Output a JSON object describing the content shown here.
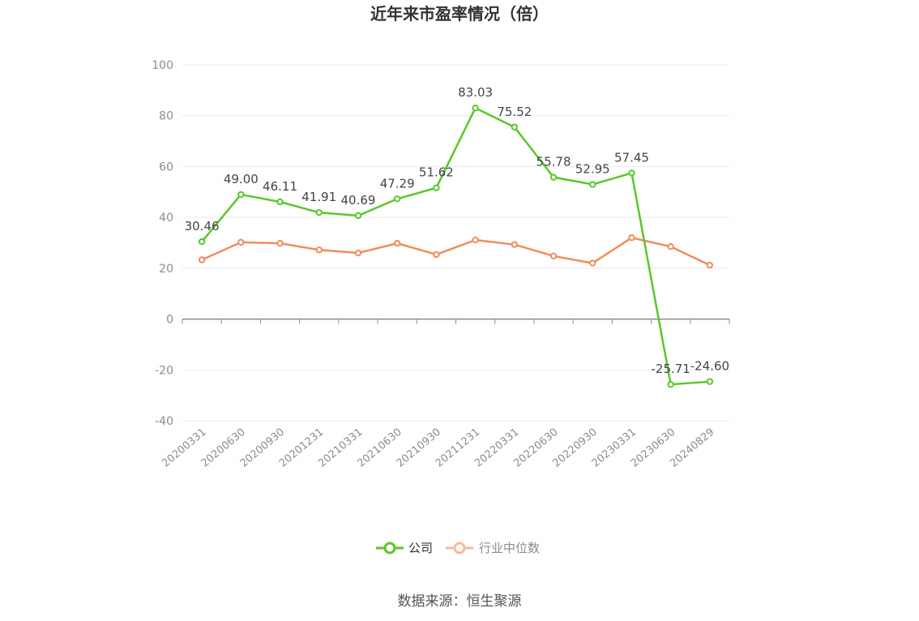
{
  "chart_data": {
    "type": "line",
    "title": "近年来市盈率情况（倍）",
    "categories": [
      "20200331",
      "20200630",
      "20200930",
      "20201231",
      "20210331",
      "20210630",
      "20210930",
      "20211231",
      "20220331",
      "20220630",
      "20220930",
      "20230331",
      "20230630",
      "20240829"
    ],
    "series": [
      {
        "name": "公司",
        "color": "#5ac72a",
        "values": [
          30.46,
          49.0,
          46.11,
          41.91,
          40.69,
          47.29,
          51.62,
          83.03,
          75.52,
          55.78,
          52.95,
          57.45,
          -25.71,
          -24.6
        ],
        "labels": [
          "30.46",
          "49.00",
          "46.11",
          "41.91",
          "40.69",
          "47.29",
          "51.62",
          "83.03",
          "75.52",
          "55.78",
          "52.95",
          "57.45",
          "-25.71",
          "-24.60"
        ]
      },
      {
        "name": "行业中位数",
        "color": "#f28c5c",
        "values": [
          23.3,
          30.2,
          29.8,
          27.2,
          26.0,
          29.8,
          25.4,
          31.1,
          29.3,
          24.8,
          22.0,
          32.0,
          28.5,
          21.2
        ]
      }
    ],
    "ylim": [
      -40,
      100
    ],
    "yticks": [
      100,
      80,
      60,
      40,
      20,
      0,
      -20,
      -40
    ],
    "grid": true,
    "legend_position": "bottom-center"
  },
  "source_text": "数据来源：恒生聚源"
}
